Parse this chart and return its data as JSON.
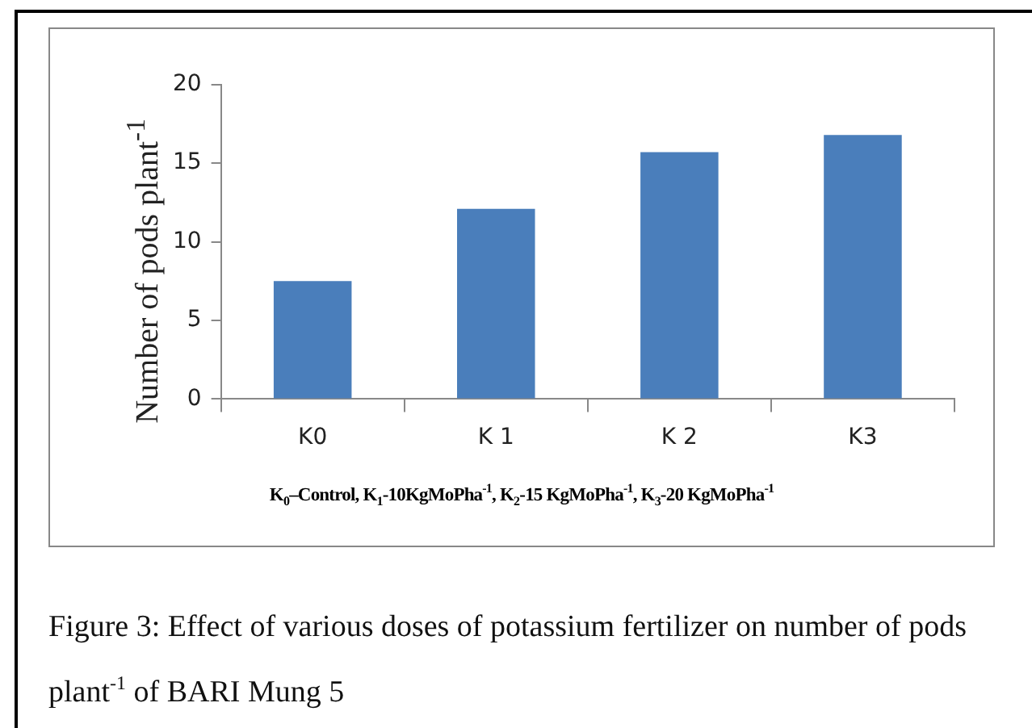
{
  "chart_data": {
    "type": "bar",
    "categories": [
      "K0",
      "K 1",
      "K 2",
      "K3"
    ],
    "values": [
      7.5,
      12.1,
      15.7,
      16.8
    ],
    "color": "#4a7ebb",
    "ylim": [
      0,
      20
    ],
    "yticks": [
      0,
      5,
      10,
      15,
      20
    ],
    "grid": false,
    "legend": false,
    "ylabel": "Number of pods plant$^{-1}$",
    "xlabel": "K$_{0}$–Control, K$_{1}$-10KgMoPha$^{-1}$, K$_{2}$-15 KgMoPha$^{-1}$, K$_{3}$-20 KgMoPha$^{-1}$",
    "annotations": [
      "Figure 3: Effect of various doses of potassium  fertilizer on number of pods plant$^{-1}$ of BARI Mung 5"
    ]
  }
}
